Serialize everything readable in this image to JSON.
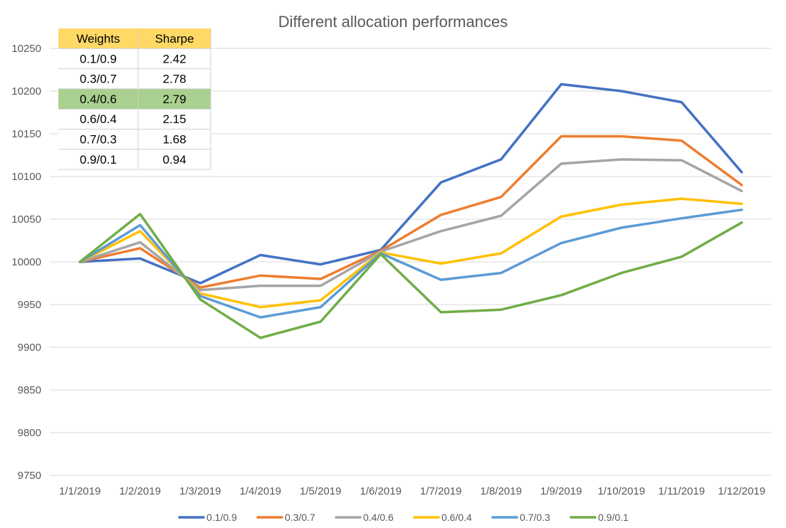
{
  "chart_data": {
    "type": "line",
    "title": "Different allocation performances",
    "xlabel": "",
    "ylabel": "",
    "ylim": [
      9750,
      10250
    ],
    "yticks": [
      9750,
      9800,
      9850,
      9900,
      9950,
      10000,
      10050,
      10100,
      10150,
      10200,
      10250
    ],
    "categories": [
      "1/1/2019",
      "1/2/2019",
      "1/3/2019",
      "1/4/2019",
      "1/5/2019",
      "1/6/2019",
      "1/7/2019",
      "1/8/2019",
      "1/9/2019",
      "1/10/2019",
      "1/11/2019",
      "1/12/2019"
    ],
    "grid": true,
    "legend_position": "bottom",
    "series": [
      {
        "name": "0.1/0.9",
        "color": "#4472C4",
        "values": [
          10000,
          10004,
          9975,
          10008,
          9997,
          10014,
          10093,
          10120,
          10208,
          10200,
          10187,
          10105
        ]
      },
      {
        "name": "0.3/0.7",
        "color": "#ED7D31",
        "values": [
          10000,
          10016,
          9970,
          9984,
          9980,
          10013,
          10055,
          10076,
          10147,
          10147,
          10142,
          10090
        ]
      },
      {
        "name": "0.4/0.6",
        "color": "#A5A5A5",
        "values": [
          10000,
          10023,
          9967,
          9972,
          9972,
          10012,
          10036,
          10054,
          10115,
          10120,
          10119,
          10083
        ]
      },
      {
        "name": "0.6/0.4",
        "color": "#FFC000",
        "values": [
          10000,
          10036,
          9963,
          9947,
          9955,
          10011,
          9998,
          10010,
          10053,
          10067,
          10074,
          10068
        ]
      },
      {
        "name": "0.7/0.3",
        "color": "#5B9BD5",
        "values": [
          10000,
          10043,
          9960,
          9935,
          9947,
          10010,
          9979,
          9987,
          10022,
          10040,
          10051,
          10061
        ]
      },
      {
        "name": "0.9/0.1",
        "color": "#70AD47",
        "values": [
          10000,
          10056,
          9956,
          9911,
          9930,
          10009,
          9941,
          9944,
          9961,
          9987,
          10006,
          10046
        ]
      }
    ],
    "table": {
      "headers": [
        "Weights",
        "Sharpe"
      ],
      "rows": [
        [
          "0.1/0.9",
          "2.42"
        ],
        [
          "0.3/0.7",
          "2.78"
        ],
        [
          "0.4/0.6",
          "2.79"
        ],
        [
          "0.6/0.4",
          "2.15"
        ],
        [
          "0.7/0.3",
          "1.68"
        ],
        [
          "0.9/0.1",
          "0.94"
        ]
      ],
      "header_color": "#FFD966",
      "highlight_row": 2,
      "highlight_color": "#A9D08E"
    }
  }
}
